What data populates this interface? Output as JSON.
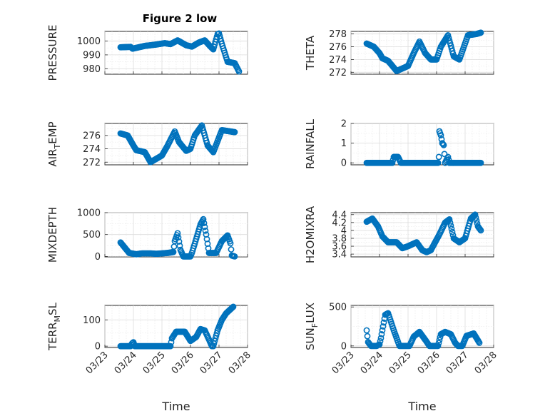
{
  "title": "Figure 2 low",
  "xlabel": "Time",
  "marker_color": "#0072bd",
  "x_ticks": [
    "03/23",
    "03/24",
    "03/25",
    "03/26",
    "03/27",
    "03/28"
  ],
  "chart_data": [
    {
      "type": "scatter",
      "ylabel": "PRESSURE",
      "yticks": [
        "980",
        "990",
        "1000"
      ],
      "ylim": [
        976,
        1007
      ],
      "xlim": [
        0,
        5
      ],
      "grid": true,
      "keys": [
        [
          0.55,
          995.5
        ],
        [
          0.9,
          995.8
        ],
        [
          0.97,
          994.5
        ],
        [
          1.4,
          996.5
        ],
        [
          1.8,
          997.5
        ],
        [
          2.1,
          998.5
        ],
        [
          2.3,
          997.8
        ],
        [
          2.55,
          1000.5
        ],
        [
          2.85,
          997
        ],
        [
          3.05,
          996
        ],
        [
          3.3,
          999
        ],
        [
          3.5,
          1000.5
        ],
        [
          3.7,
          996
        ],
        [
          3.8,
          994
        ],
        [
          3.95,
          1005
        ],
        [
          4.0,
          1005.5
        ],
        [
          4.1,
          998
        ],
        [
          4.3,
          985
        ],
        [
          4.55,
          984
        ],
        [
          4.7,
          978
        ]
      ]
    },
    {
      "type": "scatter",
      "ylabel": "THETA",
      "yticks": [
        "272",
        "274",
        "276",
        "278"
      ],
      "ylim": [
        271.7,
        278.4
      ],
      "xlim": [
        0,
        5
      ],
      "grid": true,
      "keys": [
        [
          0.55,
          276.5
        ],
        [
          0.8,
          276
        ],
        [
          1.0,
          275
        ],
        [
          1.1,
          274.2
        ],
        [
          1.3,
          273.8
        ],
        [
          1.6,
          272.2
        ],
        [
          1.8,
          272.6
        ],
        [
          2.0,
          273
        ],
        [
          2.2,
          275
        ],
        [
          2.4,
          276.8
        ],
        [
          2.6,
          275
        ],
        [
          2.8,
          274
        ],
        [
          3.0,
          274
        ],
        [
          3.15,
          276
        ],
        [
          3.4,
          277.8
        ],
        [
          3.6,
          274.5
        ],
        [
          3.8,
          274
        ],
        [
          4.1,
          277.8
        ],
        [
          4.4,
          278
        ],
        [
          4.55,
          278.2
        ]
      ]
    },
    {
      "type": "scatter",
      "ylabel": "AIR_TEMP",
      "yticks": [
        "272",
        "274",
        "276"
      ],
      "ylim": [
        271.6,
        277.8
      ],
      "xlim": [
        0,
        5
      ],
      "grid": true,
      "keys": [
        [
          0.55,
          276.3
        ],
        [
          0.8,
          276
        ],
        [
          1.0,
          274.5
        ],
        [
          1.1,
          273.8
        ],
        [
          1.4,
          273.5
        ],
        [
          1.6,
          272
        ],
        [
          1.8,
          272.5
        ],
        [
          2.0,
          273
        ],
        [
          2.2,
          274.5
        ],
        [
          2.45,
          276.6
        ],
        [
          2.6,
          275
        ],
        [
          2.85,
          273.7
        ],
        [
          3.0,
          274
        ],
        [
          3.15,
          276
        ],
        [
          3.4,
          277.5
        ],
        [
          3.6,
          274.5
        ],
        [
          3.8,
          273.5
        ],
        [
          4.1,
          276.8
        ],
        [
          4.4,
          276.6
        ],
        [
          4.55,
          276.5
        ]
      ]
    },
    {
      "type": "scatter",
      "ylabel": "RAINFALL",
      "yticks": [
        "0",
        "1",
        "2"
      ],
      "ylim": [
        -0.1,
        2.0
      ],
      "xlim": [
        0,
        5
      ],
      "grid": true,
      "keys": [
        [
          0.55,
          0
        ],
        [
          1.45,
          0
        ],
        [
          1.5,
          0.3
        ],
        [
          1.65,
          0.3
        ],
        [
          1.75,
          0
        ],
        [
          3.05,
          0
        ],
        [
          3.08,
          0.3
        ],
        [
          3.1,
          1.6
        ],
        [
          3.15,
          1.4
        ],
        [
          3.2,
          1.0
        ],
        [
          3.25,
          0.9
        ],
        [
          3.3,
          0
        ],
        [
          3.4,
          0.3
        ],
        [
          3.45,
          0
        ],
        [
          4.55,
          0
        ]
      ]
    },
    {
      "type": "scatter",
      "ylabel": "MIXDEPTH",
      "yticks": [
        "0",
        "500",
        "1000"
      ],
      "ylim": [
        -10,
        1000
      ],
      "xlim": [
        0,
        5
      ],
      "grid": true,
      "keys": [
        [
          0.55,
          320
        ],
        [
          0.7,
          200
        ],
        [
          0.85,
          80
        ],
        [
          1.1,
          50
        ],
        [
          1.3,
          70
        ],
        [
          1.6,
          70
        ],
        [
          1.8,
          60
        ],
        [
          2.2,
          80
        ],
        [
          2.4,
          100
        ],
        [
          2.45,
          350
        ],
        [
          2.55,
          530
        ],
        [
          2.65,
          150
        ],
        [
          2.75,
          0
        ],
        [
          3.0,
          0
        ],
        [
          3.05,
          80
        ],
        [
          3.2,
          400
        ],
        [
          3.35,
          730
        ],
        [
          3.45,
          850
        ],
        [
          3.55,
          500
        ],
        [
          3.65,
          80
        ],
        [
          3.9,
          80
        ],
        [
          4.1,
          350
        ],
        [
          4.3,
          480
        ],
        [
          4.4,
          300
        ],
        [
          4.45,
          20
        ],
        [
          4.55,
          0
        ]
      ]
    },
    {
      "type": "scatter",
      "ylabel": "H2OMIXRA",
      "yticks": [
        "3.4",
        "3.6",
        "3.8",
        "4",
        "4.2",
        "4.4"
      ],
      "ylim": [
        3.33,
        4.45
      ],
      "xlim": [
        0,
        5
      ],
      "grid": true,
      "keys": [
        [
          0.55,
          4.22
        ],
        [
          0.75,
          4.3
        ],
        [
          0.95,
          4.1
        ],
        [
          1.1,
          3.85
        ],
        [
          1.3,
          3.7
        ],
        [
          1.6,
          3.7
        ],
        [
          1.8,
          3.55
        ],
        [
          2.0,
          3.6
        ],
        [
          2.3,
          3.7
        ],
        [
          2.5,
          3.5
        ],
        [
          2.65,
          3.45
        ],
        [
          2.8,
          3.5
        ],
        [
          3.1,
          3.9
        ],
        [
          3.3,
          4.2
        ],
        [
          3.45,
          4.28
        ],
        [
          3.6,
          3.8
        ],
        [
          3.8,
          3.7
        ],
        [
          4.0,
          3.8
        ],
        [
          4.2,
          4.3
        ],
        [
          4.35,
          4.4
        ],
        [
          4.45,
          4.1
        ],
        [
          4.55,
          4.0
        ]
      ]
    },
    {
      "type": "scatter",
      "ylabel": "TERR_MSL",
      "yticks": [
        "0",
        "100"
      ],
      "ylim": [
        -5,
        155
      ],
      "xlim": [
        0,
        5
      ],
      "grid": true,
      "keys": [
        [
          0.55,
          0
        ],
        [
          0.9,
          0
        ],
        [
          0.95,
          10
        ],
        [
          1.0,
          15
        ],
        [
          1.05,
          0
        ],
        [
          2.3,
          0
        ],
        [
          2.35,
          30
        ],
        [
          2.5,
          55
        ],
        [
          2.8,
          55
        ],
        [
          3.0,
          20
        ],
        [
          3.2,
          35
        ],
        [
          3.35,
          65
        ],
        [
          3.5,
          60
        ],
        [
          3.65,
          25
        ],
        [
          3.75,
          0
        ],
        [
          3.8,
          0
        ],
        [
          3.95,
          60
        ],
        [
          4.1,
          100
        ],
        [
          4.25,
          125
        ],
        [
          4.4,
          140
        ],
        [
          4.5,
          150
        ]
      ]
    },
    {
      "type": "scatter",
      "ylabel": "SUN_FLUX",
      "yticks": [
        "0",
        "500"
      ],
      "ylim": [
        -20,
        520
      ],
      "xlim": [
        0,
        5
      ],
      "grid": true,
      "keys": [
        [
          0.55,
          200
        ],
        [
          0.6,
          50
        ],
        [
          0.7,
          0
        ],
        [
          0.9,
          0
        ],
        [
          1.0,
          20
        ],
        [
          1.05,
          100
        ],
        [
          1.2,
          400
        ],
        [
          1.3,
          420
        ],
        [
          1.5,
          200
        ],
        [
          1.7,
          0
        ],
        [
          2.05,
          0
        ],
        [
          2.2,
          120
        ],
        [
          2.4,
          180
        ],
        [
          2.6,
          80
        ],
        [
          2.75,
          0
        ],
        [
          3.05,
          0
        ],
        [
          3.15,
          150
        ],
        [
          3.3,
          180
        ],
        [
          3.5,
          150
        ],
        [
          3.65,
          40
        ],
        [
          3.75,
          0
        ],
        [
          3.9,
          0
        ],
        [
          4.05,
          130
        ],
        [
          4.3,
          160
        ],
        [
          4.5,
          40
        ]
      ]
    }
  ]
}
